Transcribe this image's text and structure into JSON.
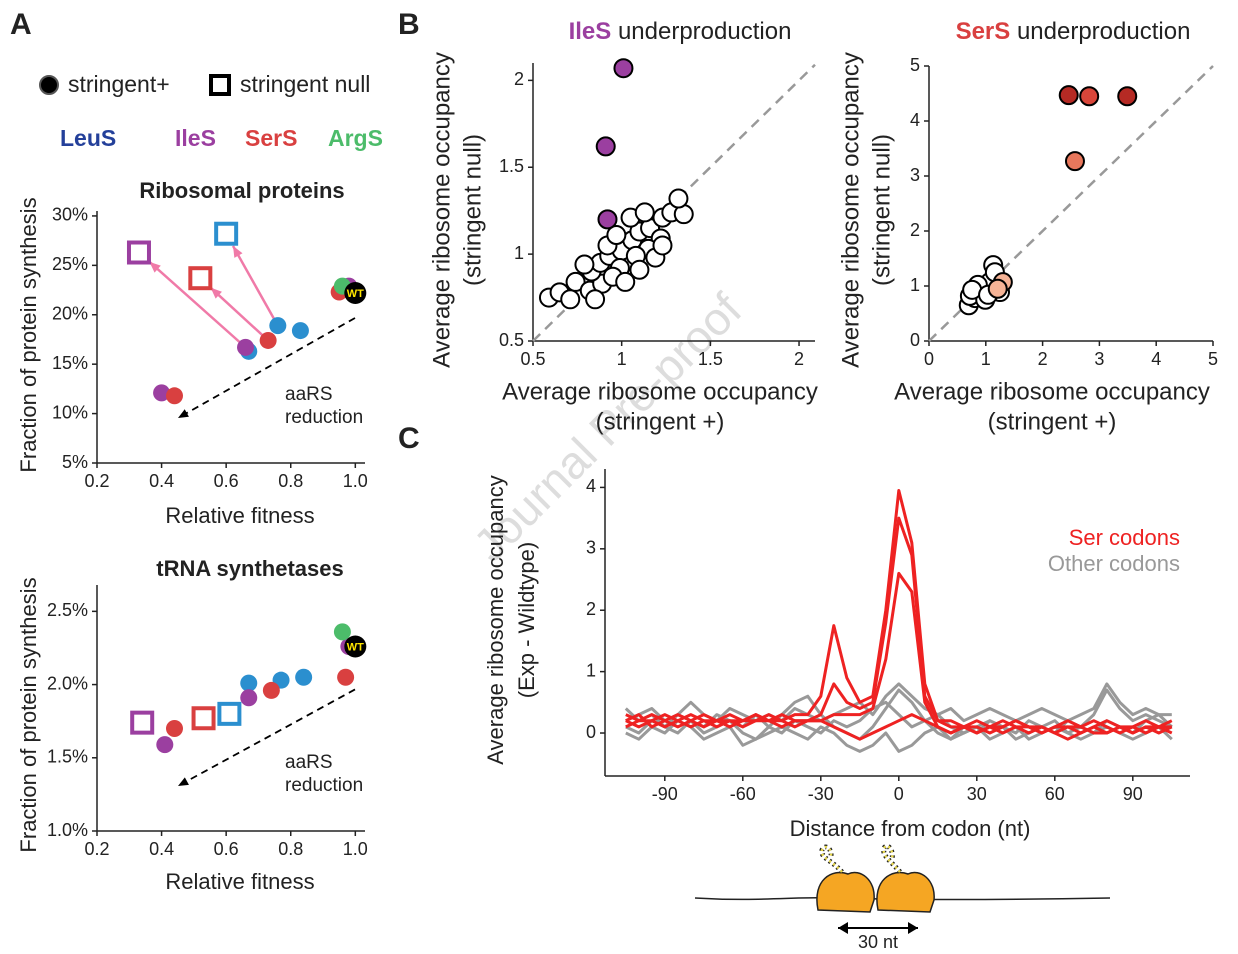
{
  "figure": {
    "panel_labels": [
      "A",
      "B",
      "C"
    ],
    "marker_legend": [
      "stringent+",
      "stringent null"
    ],
    "enzymes": [
      {
        "name": "LeuS",
        "color": "#24409a"
      },
      {
        "name": "IleS",
        "color": "#9b3fa0"
      },
      {
        "name": "SerS",
        "color": "#d94040"
      },
      {
        "name": "ArgS",
        "color": "#4cbc6a"
      }
    ],
    "watermark": "Journal Pre-proof",
    "diagram_label": "30 nt"
  },
  "chart_data": [
    {
      "type": "scatter",
      "title": "Ribosomal proteins",
      "x_label": "Relative fitness",
      "y_label": [
        "Fraction of protein synthesis"
      ],
      "xlim": [
        0.2,
        1.03
      ],
      "ylim": [
        5,
        30.5
      ],
      "xticks": [
        0.2,
        0.4,
        0.6,
        0.8,
        {
          "value": 1,
          "label": "1.0"
        }
      ],
      "yticks": [
        {
          "value": 5,
          "label": "5%"
        },
        {
          "value": 10,
          "label": "10%"
        },
        {
          "value": 15,
          "label": "15%"
        },
        {
          "value": 20,
          "label": "20%"
        },
        {
          "value": 25,
          "label": "25%"
        },
        {
          "value": 30,
          "label": "30%"
        }
      ],
      "annotation": [
        "aaRS",
        "reduction"
      ],
      "arrows": true,
      "series": [
        {
          "color": "#2b8fcf",
          "marker": "circle",
          "x": [
            0.67,
            0.76,
            0.83
          ],
          "values": [
            16.3,
            18.9,
            18.4
          ]
        },
        {
          "color": "#2b8fcf",
          "marker": "square",
          "x": [
            0.6
          ],
          "values": [
            28.2
          ]
        },
        {
          "color": "#9b3fa0",
          "marker": "circle",
          "x": [
            0.4,
            0.66,
            0.98
          ],
          "values": [
            12.1,
            16.7,
            22.9
          ]
        },
        {
          "color": "#9b3fa0",
          "marker": "square",
          "x": [
            0.33
          ],
          "values": [
            26.3
          ]
        },
        {
          "color": "#d94040",
          "marker": "circle",
          "x": [
            0.44,
            0.73,
            0.95
          ],
          "values": [
            11.8,
            17.4,
            22.3
          ]
        },
        {
          "color": "#d94040",
          "marker": "square",
          "x": [
            0.52
          ],
          "values": [
            23.7
          ]
        },
        {
          "color": "#4cbc6a",
          "marker": "circle",
          "x": [
            0.96
          ],
          "values": [
            22.9
          ]
        },
        {
          "color": "#000000",
          "marker": "circle",
          "point_label": "WT",
          "x": [
            1.0
          ],
          "values": [
            22.2
          ]
        }
      ]
    },
    {
      "type": "scatter",
      "title": "tRNA synthetases",
      "x_label": "Relative fitness",
      "y_label": [
        "Fraction of protein synthesis"
      ],
      "xlim": [
        0.2,
        1.03
      ],
      "ylim": [
        1.0,
        2.68
      ],
      "xticks": [
        0.2,
        0.4,
        0.6,
        0.8,
        {
          "value": 1,
          "label": "1.0"
        }
      ],
      "yticks": [
        {
          "value": 1,
          "label": "1.0%"
        },
        {
          "value": 1.5,
          "label": "1.5%"
        },
        {
          "value": 2,
          "label": "2.0%"
        },
        {
          "value": 2.5,
          "label": "2.5%"
        }
      ],
      "annotation": [
        "aaRS",
        "reduction"
      ],
      "series": [
        {
          "color": "#2b8fcf",
          "marker": "circle",
          "x": [
            0.67,
            0.77,
            0.84
          ],
          "values": [
            2.01,
            2.03,
            2.05
          ]
        },
        {
          "color": "#2b8fcf",
          "marker": "square",
          "x": [
            0.61
          ],
          "values": [
            1.8
          ]
        },
        {
          "color": "#9b3fa0",
          "marker": "circle",
          "x": [
            0.41,
            0.67,
            0.98
          ],
          "values": [
            1.59,
            1.91,
            2.26
          ]
        },
        {
          "color": "#9b3fa0",
          "marker": "square",
          "x": [
            0.34
          ],
          "values": [
            1.74
          ]
        },
        {
          "color": "#d94040",
          "marker": "circle",
          "x": [
            0.44,
            0.74,
            0.97
          ],
          "values": [
            1.7,
            1.96,
            2.05
          ]
        },
        {
          "color": "#d94040",
          "marker": "square",
          "x": [
            0.53
          ],
          "values": [
            1.77
          ]
        },
        {
          "color": "#4cbc6a",
          "marker": "circle",
          "x": [
            0.96
          ],
          "values": [
            2.36
          ]
        },
        {
          "color": "#000000",
          "marker": "circle",
          "point_label": "WT",
          "x": [
            1.0
          ],
          "values": [
            2.26
          ]
        }
      ]
    },
    {
      "type": "scatter",
      "title_prefix": "IleS",
      "title_prefix_color": "#9b3fa0",
      "title": "underproduction",
      "x_label": [
        "Average ribosome occupancy",
        "(stringent +)"
      ],
      "y_label": [
        "Average ribosome occupancy",
        "(stringent null)"
      ],
      "xlim": [
        0.5,
        2.09
      ],
      "ylim": [
        0.5,
        2.1
      ],
      "xticks": [
        0.5,
        1,
        1.5,
        2
      ],
      "yticks": [
        0.5,
        1,
        1.5,
        2
      ],
      "diagonal": true,
      "series": [
        {
          "color": "#ffffff",
          "marker": "edged",
          "x": [
            0.59,
            0.65,
            0.74,
            0.82,
            0.89,
            0.83,
            0.88,
            0.93,
            1.0,
            1.06,
            1.1,
            1.16,
            1.23,
            1.28,
            1.35,
            1.32,
            1.22,
            1.15,
            1.08,
            0.99,
            0.95,
            1.02,
            1.1,
            1.19,
            0.92,
            0.97,
            1.05,
            1.13,
            0.85,
            0.71,
            0.79,
            1.23
          ],
          "values": [
            0.75,
            0.78,
            0.84,
            0.79,
            0.83,
            0.9,
            0.95,
            0.99,
            1.02,
            1.08,
            1.13,
            1.15,
            1.21,
            1.24,
            1.23,
            1.32,
            1.09,
            1.03,
            0.99,
            0.92,
            0.87,
            0.84,
            0.91,
            0.98,
            1.05,
            1.11,
            1.21,
            1.24,
            0.74,
            0.74,
            0.94,
            1.05
          ]
        },
        {
          "color": "#9b3fa0",
          "marker": "edged",
          "x": [
            1.01,
            0.91,
            0.92
          ],
          "values": [
            2.07,
            1.62,
            1.2
          ]
        }
      ]
    },
    {
      "type": "scatter",
      "title_prefix": "SerS",
      "title_prefix_color": "#d94040",
      "title": "underproduction",
      "x_label": [
        "Average ribosome occupancy",
        "(stringent +)"
      ],
      "y_label": [
        "Average ribosome occupancy",
        "(stringent null)"
      ],
      "xlim": [
        0,
        5
      ],
      "ylim": [
        0,
        5
      ],
      "xticks": [
        0,
        1,
        2,
        3,
        4,
        5
      ],
      "yticks": [
        0,
        1,
        2,
        3,
        4,
        5
      ],
      "diagonal": true,
      "series": [
        {
          "color": "#ffffff",
          "marker": "edged",
          "x": [
            0.7,
            0.81,
            0.93,
            1.07,
            1.13,
            0.86,
            0.72,
            0.99,
            1.16,
            1.25,
            0.76,
            1.04
          ],
          "values": [
            0.65,
            0.78,
            0.93,
            1.07,
            1.38,
            1.02,
            0.82,
            0.75,
            1.25,
            0.89,
            0.93,
            0.84
          ]
        },
        {
          "color": "#b52a24",
          "marker": "edged",
          "x": [
            2.46,
            3.49
          ],
          "values": [
            4.47,
            4.45
          ]
        },
        {
          "color": "#d9463a",
          "marker": "edged",
          "x": [
            2.82
          ],
          "values": [
            4.45
          ]
        },
        {
          "color": "#e8775c",
          "marker": "edged",
          "x": [
            2.57
          ],
          "values": [
            3.27
          ]
        },
        {
          "color": "#f5b396",
          "marker": "edged",
          "x": [
            1.3,
            1.21
          ],
          "values": [
            1.07,
            0.95
          ]
        }
      ]
    },
    {
      "type": "line",
      "x_label": "Distance from codon (nt)",
      "y_label": [
        "Average ribosome occupancy",
        "(Exp - Wildtype)"
      ],
      "xlim": [
        -113,
        112
      ],
      "ylim": [
        -0.7,
        4.3
      ],
      "xticks": [
        -90,
        -60,
        -30,
        0,
        30,
        60,
        90
      ],
      "yticks": [
        0,
        1,
        2,
        3,
        4
      ],
      "legend": "top-right",
      "x": [
        -105,
        -100,
        -95,
        -90,
        -85,
        -80,
        -75,
        -70,
        -65,
        -60,
        -55,
        -50,
        -45,
        -40,
        -35,
        -30,
        -25,
        -20,
        -15,
        -10,
        -5,
        0,
        5,
        10,
        15,
        20,
        25,
        30,
        35,
        40,
        45,
        50,
        55,
        60,
        65,
        70,
        75,
        80,
        85,
        90,
        95,
        100,
        105
      ],
      "series": [
        {
          "name": "Ser codons",
          "color": "#ee2222",
          "values": [
            [
              0.2,
              0.3,
              0.1,
              0.2,
              0.3,
              0.2,
              0.1,
              0.2,
              0.3,
              0.2,
              0.2,
              0.3,
              0.2,
              0.3,
              0.3,
              0.6,
              1.75,
              0.9,
              0.5,
              0.6,
              2.0,
              3.95,
              3.1,
              0.8,
              0.2,
              0.1,
              0.1,
              0.2,
              0.1,
              0.0,
              0.1,
              0.1,
              0.0,
              0.1,
              0.1,
              0.0,
              0.1,
              0.2,
              0.1,
              0.0,
              0.1,
              0.1,
              0.1
            ],
            [
              0.1,
              0.2,
              0.3,
              0.2,
              0.1,
              0.2,
              0.3,
              0.2,
              0.2,
              0.1,
              0.2,
              0.2,
              0.3,
              0.2,
              0.2,
              0.3,
              0.8,
              0.5,
              0.4,
              0.5,
              1.8,
              3.5,
              2.9,
              0.6,
              0.2,
              0.2,
              0.1,
              0.0,
              0.1,
              0.1,
              0.2,
              0.1,
              0.0,
              0.1,
              0.2,
              0.1,
              0.0,
              0.0,
              0.1,
              0.1,
              0.0,
              0.1,
              0.2
            ],
            [
              0.3,
              0.2,
              0.2,
              0.1,
              0.2,
              0.3,
              0.2,
              0.1,
              0.2,
              0.2,
              0.3,
              0.2,
              0.1,
              0.2,
              0.2,
              0.2,
              0.3,
              0.3,
              0.3,
              0.4,
              1.2,
              2.6,
              2.3,
              0.5,
              0.1,
              0.0,
              0.1,
              0.1,
              0.0,
              0.1,
              0.2,
              0.1,
              0.1,
              0.0,
              0.1,
              0.1,
              0.2,
              0.1,
              0.0,
              0.1,
              0.2,
              0.1,
              0.0
            ],
            [
              0.2,
              0.1,
              0.2,
              0.3,
              0.2,
              0.1,
              0.2,
              0.2,
              0.1,
              0.2,
              0.3,
              0.2,
              0.2,
              0.1,
              0.2,
              0.2,
              0.1,
              0.0,
              -0.1,
              0.0,
              0.1,
              0.2,
              0.3,
              0.2,
              0.1,
              0.0,
              0.1,
              0.0,
              0.1,
              0.2,
              0.1,
              0.0,
              0.1,
              0.0,
              -0.1,
              0.0,
              0.1,
              0.0,
              0.1,
              0.0,
              0.1,
              0.0,
              0.1
            ]
          ]
        },
        {
          "name": "Other codons",
          "color": "#999999",
          "values": [
            [
              0.4,
              0.2,
              0.3,
              0.1,
              0.0,
              0.2,
              0.1,
              0.3,
              0.2,
              0.0,
              -0.1,
              0.1,
              0.3,
              0.5,
              0.6,
              0.3,
              0.1,
              0.0,
              -0.1,
              0.1,
              0.4,
              0.7,
              0.5,
              0.2,
              0.3,
              0.1,
              0.0,
              0.1,
              0.2,
              0.1,
              0.0,
              0.2,
              0.1,
              0.0,
              0.2,
              0.1,
              0.3,
              0.7,
              0.4,
              0.2,
              0.3,
              0.2,
              0.1
            ],
            [
              0.0,
              -0.1,
              0.1,
              0.0,
              0.2,
              0.1,
              -0.1,
              0.0,
              0.1,
              -0.2,
              -0.1,
              0.0,
              0.1,
              0.0,
              -0.1,
              0.1,
              0.0,
              -0.2,
              -0.3,
              -0.2,
              0.0,
              -0.3,
              -0.2,
              0.0,
              0.1,
              -0.1,
              0.0,
              0.1,
              -0.1,
              0.0,
              0.1,
              -0.1,
              0.0,
              0.1,
              0.0,
              -0.1,
              0.0,
              0.1,
              0.0,
              -0.1,
              0.0,
              0.1,
              -0.1
            ],
            [
              0.2,
              0.3,
              0.4,
              0.2,
              0.3,
              0.5,
              0.3,
              0.2,
              0.4,
              0.3,
              0.2,
              0.3,
              0.2,
              0.4,
              0.3,
              0.2,
              0.3,
              0.4,
              0.5,
              0.3,
              0.6,
              0.8,
              0.6,
              0.4,
              0.3,
              0.4,
              0.2,
              0.3,
              0.4,
              0.3,
              0.2,
              0.3,
              0.4,
              0.3,
              0.2,
              0.3,
              0.4,
              0.8,
              0.5,
              0.3,
              0.4,
              0.3,
              0.3
            ],
            [
              0.1,
              0.0,
              0.2,
              0.1,
              0.3,
              0.2,
              0.0,
              0.1,
              0.2,
              0.1,
              0.3,
              0.1,
              0.0,
              0.2,
              0.1,
              0.0,
              0.2,
              0.1,
              0.2,
              0.4,
              0.5,
              0.3,
              0.1,
              0.2,
              0.0,
              -0.1,
              0.1,
              0.0,
              0.2,
              0.1,
              -0.1,
              0.0,
              0.1,
              0.2,
              0.0,
              0.1,
              0.0,
              0.2,
              0.1,
              0.0,
              0.2,
              0.3,
              0.1
            ]
          ]
        }
      ]
    }
  ]
}
